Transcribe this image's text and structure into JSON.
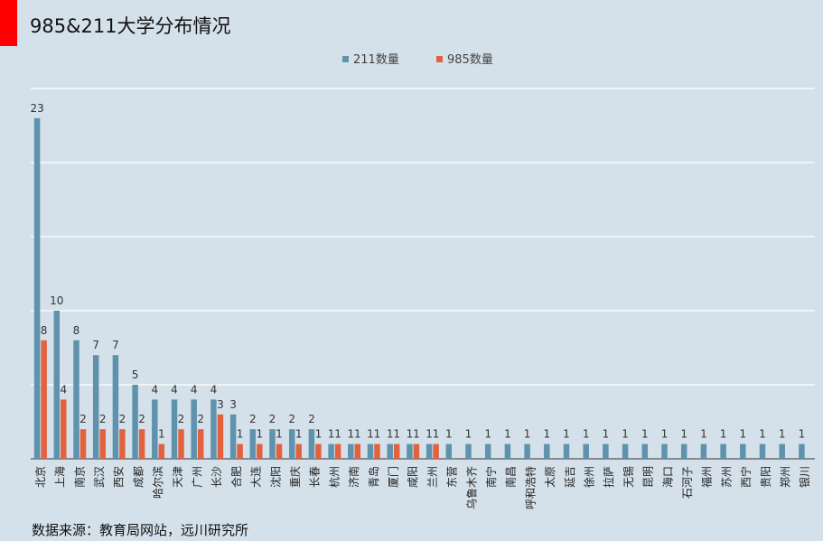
{
  "title": "985&211大学分布情况",
  "source": "数据来源：教育局网站，远川研究所",
  "colors": {
    "accent": "#ff0000",
    "series_211": "#5f93ad",
    "series_985": "#e2623f",
    "background": "#d5e1ea",
    "gridline": "#ffffff"
  },
  "chart_data": {
    "type": "bar",
    "title": "985&211大学分布情况",
    "xlabel": "",
    "ylabel": "",
    "ylim": [
      0,
      25
    ],
    "grid": true,
    "legend_position": "top-center",
    "categories": [
      "北京",
      "上海",
      "南京",
      "武汉",
      "西安",
      "成都",
      "哈尔滨",
      "天津",
      "广州",
      "长沙",
      "合肥",
      "大连",
      "沈阳",
      "重庆",
      "长春",
      "杭州",
      "济南",
      "青岛",
      "厦门",
      "咸阳",
      "兰州",
      "东营",
      "乌鲁木齐",
      "南宁",
      "南昌",
      "呼和浩特",
      "太原",
      "延吉",
      "徐州",
      "拉萨",
      "无锡",
      "昆明",
      "海口",
      "石河子",
      "福州",
      "苏州",
      "西宁",
      "贵阳",
      "郑州",
      "银川"
    ],
    "series": [
      {
        "name": "211数量",
        "values": [
          23,
          10,
          8,
          7,
          7,
          5,
          4,
          4,
          4,
          4,
          3,
          2,
          2,
          2,
          2,
          1,
          1,
          1,
          1,
          1,
          1,
          1,
          1,
          1,
          1,
          1,
          1,
          1,
          1,
          1,
          1,
          1,
          1,
          1,
          1,
          1,
          1,
          1,
          1,
          1
        ]
      },
      {
        "name": "985数量",
        "values": [
          8,
          4,
          2,
          2,
          2,
          2,
          1,
          2,
          2,
          3,
          1,
          1,
          1,
          1,
          1,
          1,
          1,
          1,
          1,
          1,
          1,
          null,
          null,
          null,
          null,
          null,
          null,
          null,
          null,
          null,
          null,
          null,
          null,
          null,
          null,
          null,
          null,
          null,
          null,
          null
        ]
      }
    ]
  }
}
